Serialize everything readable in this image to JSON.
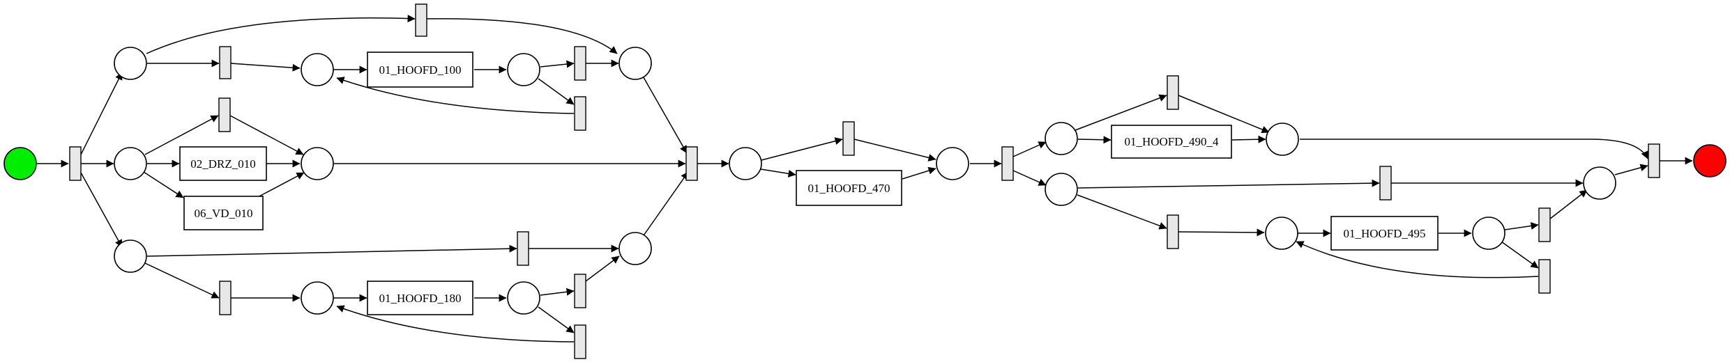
{
  "diagram": {
    "type": "petri-net",
    "colors": {
      "source_place": "#00ee00",
      "sink_place": "#ff0000",
      "place": "#ffffff",
      "silent_transition": "#e8e8e8",
      "stroke": "#000000"
    },
    "tasks": {
      "hoofd_100": "01_HOOFD_100",
      "drz_010": "02_DRZ_010",
      "vd_010": "06_VD_010",
      "hoofd_180": "01_HOOFD_180",
      "hoofd_470": "01_HOOFD_470",
      "hoofd_490_4": "01_HOOFD_490_4",
      "hoofd_495": "01_HOOFD_495"
    }
  }
}
